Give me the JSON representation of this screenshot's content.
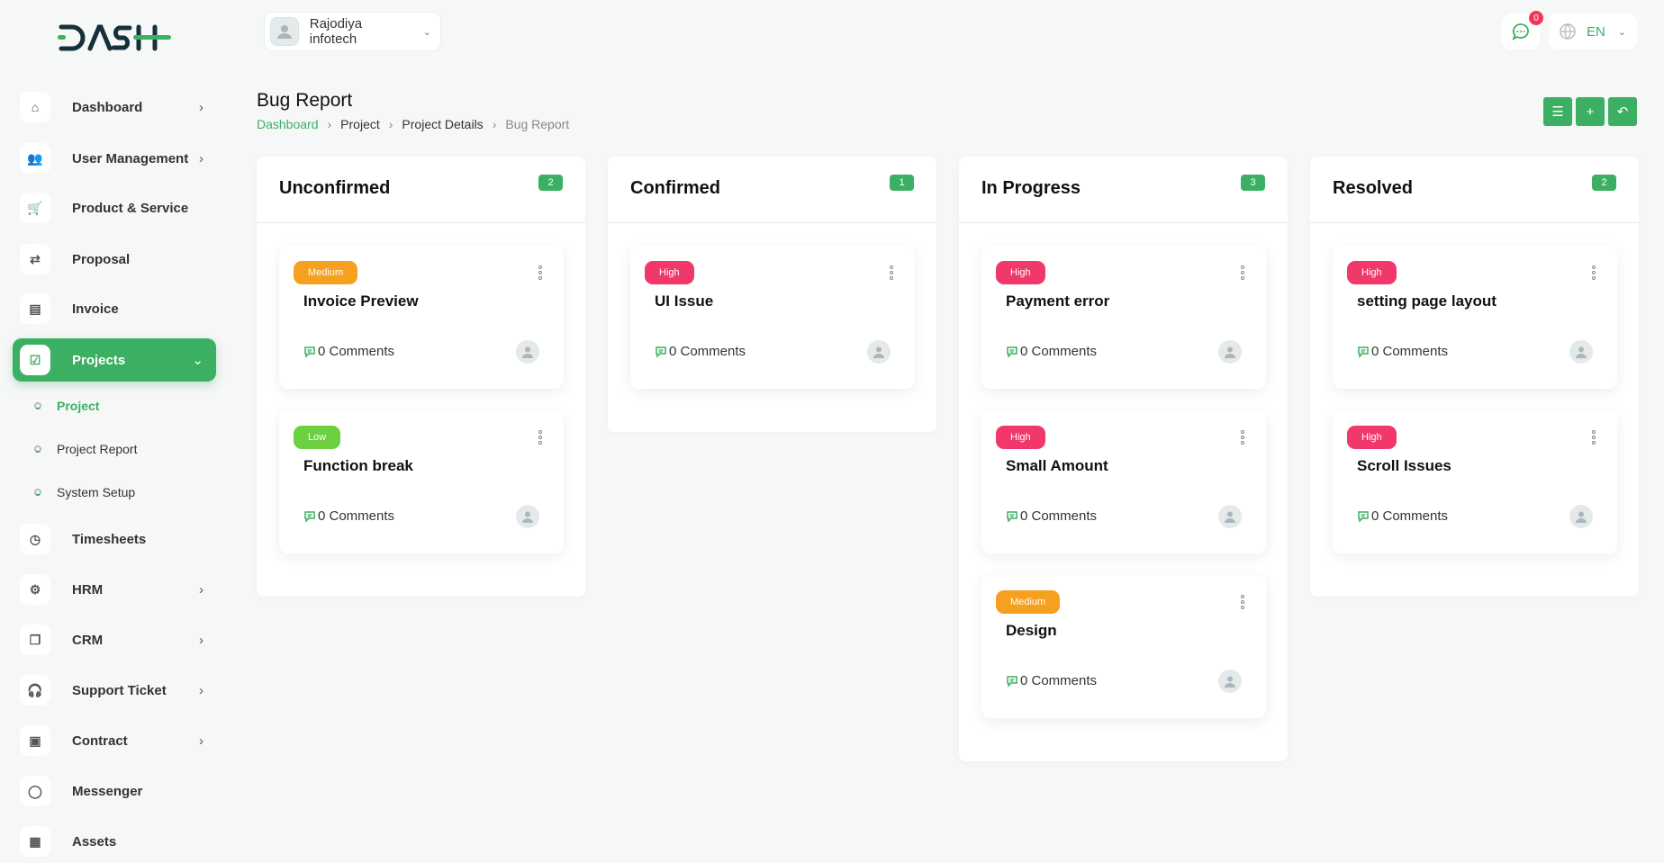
{
  "logo": "DASH",
  "header": {
    "company": "Rajodiya infotech",
    "notifications_count": "0",
    "language": "EN"
  },
  "sidebar": {
    "items": [
      {
        "label": "Dashboard",
        "icon": "home-icon",
        "arrow": true
      },
      {
        "label": "User Management",
        "icon": "users-icon",
        "arrow": true
      },
      {
        "label": "Product & Service",
        "icon": "cart-icon",
        "arrow": false
      },
      {
        "label": "Proposal",
        "icon": "proposal-icon",
        "arrow": false
      },
      {
        "label": "Invoice",
        "icon": "file-icon",
        "arrow": false
      },
      {
        "label": "Projects",
        "icon": "checkbox-icon",
        "arrow": true,
        "active": true
      },
      {
        "label": "Timesheets",
        "icon": "clock-icon",
        "arrow": false
      },
      {
        "label": "HRM",
        "icon": "hrm-icon",
        "arrow": true
      },
      {
        "label": "CRM",
        "icon": "crm-icon",
        "arrow": true
      },
      {
        "label": "Support Ticket",
        "icon": "headphones-icon",
        "arrow": true
      },
      {
        "label": "Contract",
        "icon": "contract-icon",
        "arrow": true
      },
      {
        "label": "Messenger",
        "icon": "message-icon",
        "arrow": false
      },
      {
        "label": "Assets",
        "icon": "calculator-icon",
        "arrow": false
      }
    ],
    "subitems": [
      {
        "label": "Project",
        "active": true
      },
      {
        "label": "Project Report"
      },
      {
        "label": "System Setup"
      }
    ]
  },
  "page": {
    "title": "Bug Report",
    "breadcrumb": [
      "Dashboard",
      "Project",
      "Project Details",
      "Bug Report"
    ]
  },
  "colors": {
    "accent": "#3cb062",
    "high": "#f0386b",
    "medium": "#f5a01f",
    "low": "#6bd140"
  },
  "columns": [
    {
      "title": "Unconfirmed",
      "count": "2",
      "cards": [
        {
          "priority": "Medium",
          "title": "Invoice Preview",
          "comments": "0 Comments"
        },
        {
          "priority": "Low",
          "title": "Function break",
          "comments": "0 Comments"
        }
      ]
    },
    {
      "title": "Confirmed",
      "count": "1",
      "cards": [
        {
          "priority": "High",
          "title": "UI Issue",
          "comments": "0 Comments"
        }
      ]
    },
    {
      "title": "In Progress",
      "count": "3",
      "cards": [
        {
          "priority": "High",
          "title": "Payment error",
          "comments": "0 Comments"
        },
        {
          "priority": "High",
          "title": "Small Amount",
          "comments": "0 Comments"
        },
        {
          "priority": "Medium",
          "title": "Design",
          "comments": "0 Comments"
        }
      ]
    },
    {
      "title": "Resolved",
      "count": "2",
      "cards": [
        {
          "priority": "High",
          "title": "setting page layout",
          "comments": "0 Comments"
        },
        {
          "priority": "High",
          "title": "Scroll Issues",
          "comments": "0 Comments"
        }
      ]
    }
  ]
}
